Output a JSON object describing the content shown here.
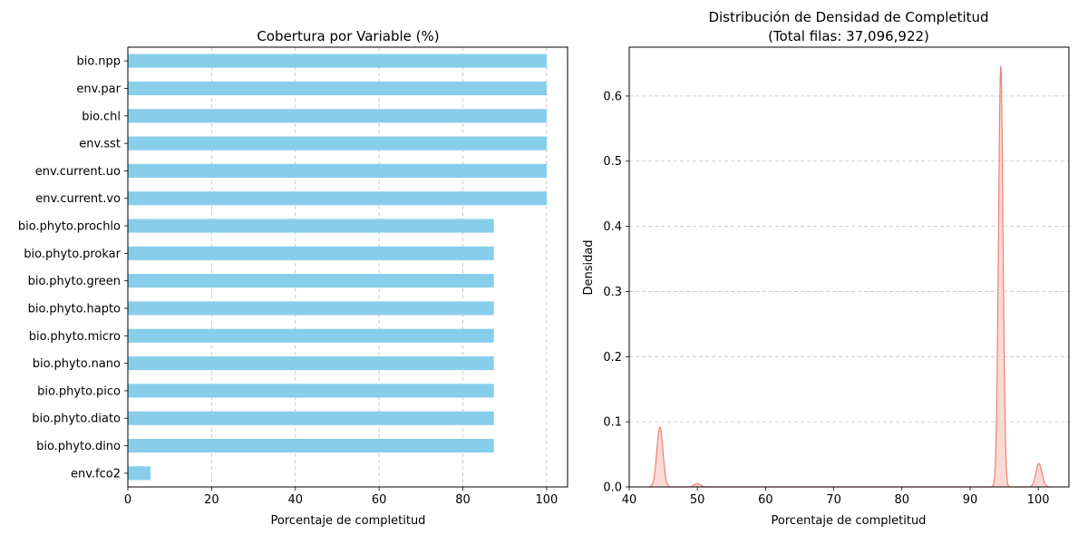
{
  "chart_data": [
    {
      "type": "bar",
      "orientation": "horizontal",
      "title": "Cobertura por Variable (%)",
      "xlabel": "Porcentaje de completitud",
      "ylabel": "",
      "xlim": [
        0,
        105
      ],
      "xticks": [
        0,
        20,
        40,
        60,
        80,
        100
      ],
      "grid": "x-axis dashed",
      "categories": [
        "bio.npp",
        "env.par",
        "bio.chl",
        "env.sst",
        "env.current.uo",
        "env.current.vo",
        "bio.phyto.prochlo",
        "bio.phyto.prokar",
        "bio.phyto.green",
        "bio.phyto.hapto",
        "bio.phyto.micro",
        "bio.phyto.nano",
        "bio.phyto.pico",
        "bio.phyto.diato",
        "bio.phyto.dino",
        "env.fco2"
      ],
      "values": [
        100,
        100,
        100,
        100,
        100,
        100,
        87.4,
        87.4,
        87.4,
        87.4,
        87.4,
        87.4,
        87.4,
        87.4,
        87.4,
        5.4
      ],
      "color": "#87ceeb"
    },
    {
      "type": "area",
      "subtype": "density",
      "title": "Distribución de Densidad de Completitud",
      "subtitle": "(Total filas: 37,096,922)",
      "xlabel": "Porcentaje de completitud",
      "ylabel": "Densidad",
      "xlim": [
        40,
        104.5
      ],
      "ylim": [
        0,
        0.675
      ],
      "xticks": [
        40,
        50,
        60,
        70,
        80,
        90,
        100
      ],
      "yticks": [
        0.0,
        0.1,
        0.2,
        0.3,
        0.4,
        0.5,
        0.6
      ],
      "grid": "y-axis dashed",
      "peaks": [
        {
          "x": 44.5,
          "y": 0.092,
          "width": 0.45
        },
        {
          "x": 50.0,
          "y": 0.005,
          "width": 0.45
        },
        {
          "x": 94.5,
          "y": 0.647,
          "width": 0.33
        },
        {
          "x": 100.1,
          "y": 0.036,
          "width": 0.45
        }
      ],
      "line_color": "#f08070",
      "fill_color": "#fbd9d4"
    }
  ]
}
